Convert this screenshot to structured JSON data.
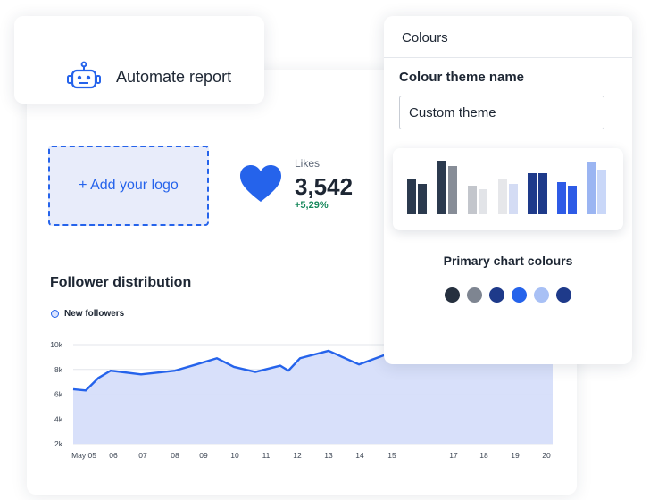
{
  "automate": {
    "title": "Automate report",
    "icon": "robot-icon"
  },
  "logo": {
    "label": "+ Add your logo"
  },
  "likes": {
    "label": "Likes",
    "value": "3,542",
    "change": "+5,29%",
    "icon": "heart-icon",
    "accent": "#2563eb",
    "change_color": "#16885b"
  },
  "follower": {
    "title": "Follower distribution",
    "legend": "New followers"
  },
  "chart_data": {
    "type": "area",
    "title": "Follower distribution",
    "legend": "top-left",
    "grid": true,
    "y_ticks": [
      "2k",
      "4k",
      "6k",
      "8k",
      "10k"
    ],
    "ylim": [
      2000,
      10000
    ],
    "x_ticks": [
      "May 05",
      "06",
      "07",
      "08",
      "09",
      "10",
      "11",
      "12",
      "13",
      "14",
      "15",
      "17",
      "18",
      "19",
      "20"
    ],
    "series": [
      {
        "name": "New followers",
        "color": "#2563eb",
        "fill": "#d6defa",
        "points": [
          [
            "May 05",
            6400
          ],
          [
            "May 05b",
            6300
          ],
          [
            "06a",
            7300
          ],
          [
            "06",
            7900
          ],
          [
            "07",
            7600
          ],
          [
            "08",
            7900
          ],
          [
            "09a",
            8400
          ],
          [
            "09",
            8900
          ],
          [
            "10",
            8200
          ],
          [
            "11",
            7800
          ],
          [
            "12a",
            8300
          ],
          [
            "12b",
            7900
          ],
          [
            "12",
            8900
          ],
          [
            "13",
            9500
          ],
          [
            "14",
            8400
          ],
          [
            "15",
            9300
          ]
        ]
      }
    ]
  },
  "colours": {
    "header": "Colours",
    "theme_label": "Colour theme name",
    "theme_value": "Custom theme",
    "primary_title": "Primary chart colours",
    "bar_pairs": [
      [
        "#2b3a4e",
        "#2b3a4e"
      ],
      [
        "#2b3a4e",
        "#878d97"
      ],
      [
        "#c3c6cc",
        "#e2e4e8"
      ],
      [
        "#e6e7ea",
        "#d4dcf4"
      ],
      [
        "#1e3a8a",
        "#1e3a8a"
      ],
      [
        "#2e5be6",
        "#2e5be6"
      ],
      [
        "#9bb5f2",
        "#c9d7f8"
      ]
    ],
    "swatches": [
      "#26303f",
      "#7e8591",
      "#1e3a8a",
      "#2563eb",
      "#a8c0f5",
      "#1e3a8a"
    ]
  }
}
